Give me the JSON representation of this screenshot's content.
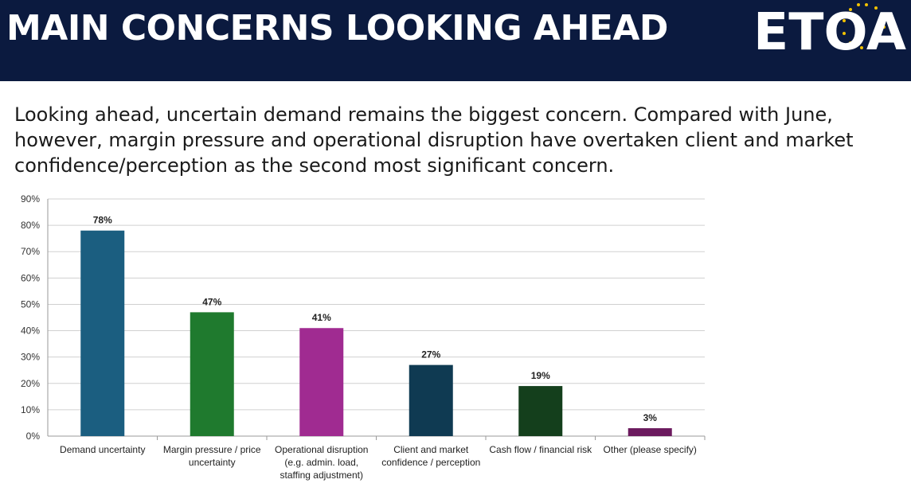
{
  "header": {
    "title": "MAIN CONCERNS LOOKING AHEAD",
    "logo_text": "ETOA"
  },
  "subtitle": "Looking ahead, uncertain demand remains the biggest concern. Compared with June, however, margin pressure and operational disruption have overtaken client and market confidence/perception as the second most significant concern.",
  "chart_data": {
    "type": "bar",
    "categories": [
      [
        "Demand uncertainty"
      ],
      [
        "Margin pressure / price",
        "uncertainty"
      ],
      [
        "Operational disruption",
        "(e.g. admin. load,",
        "staffing adjustment)"
      ],
      [
        "Client and market",
        "confidence / perception"
      ],
      [
        "Cash flow / financial risk"
      ],
      [
        "Other (please specify)"
      ]
    ],
    "values": [
      78,
      47,
      41,
      27,
      19,
      3
    ],
    "data_labels": [
      "78%",
      "47%",
      "41%",
      "27%",
      "19%",
      "3%"
    ],
    "bar_colors": [
      "#1b5e80",
      "#1f7a2e",
      "#a02b91",
      "#0f3a52",
      "#143f1c",
      "#6b1a5e"
    ],
    "ylim": [
      0,
      90
    ],
    "yticks": [
      "0%",
      "10%",
      "20%",
      "30%",
      "40%",
      "50%",
      "60%",
      "70%",
      "80%",
      "90%"
    ],
    "ytick_values": [
      0,
      10,
      20,
      30,
      40,
      50,
      60,
      70,
      80,
      90
    ],
    "grid": true,
    "xlabel": "",
    "ylabel": ""
  }
}
